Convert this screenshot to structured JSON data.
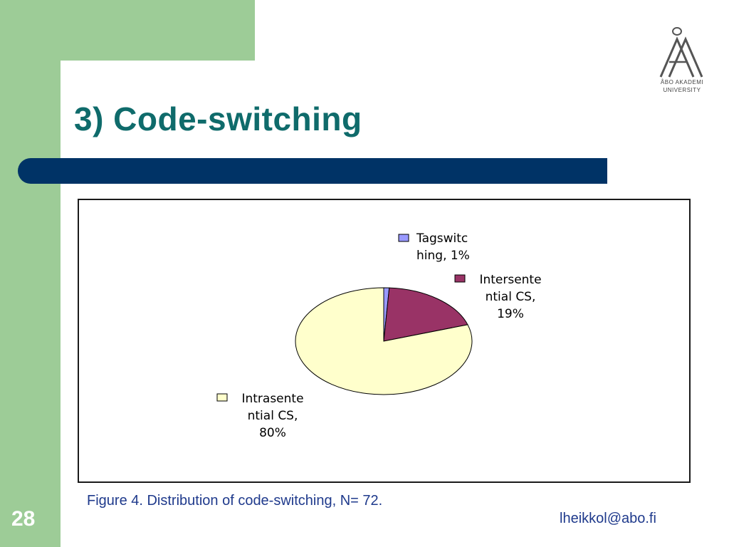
{
  "slide": {
    "title": "3) Code-switching",
    "caption": "Figure 4. Distribution of code-switching, N= 72.",
    "page_number": "28",
    "email": "lheikkol@abo.fi",
    "logo": {
      "icon": "abo-akademi-logo-icon",
      "line1": "ÅBO AKADEMI",
      "line2": "UNIVERSITY"
    }
  },
  "colors": {
    "green": "#9dcc97",
    "title": "#0f6b6b",
    "bar": "#003366",
    "caption": "#1f3a8c"
  },
  "chart_data": {
    "type": "pie",
    "title": "",
    "slices": [
      {
        "label_lines": [
          "Tagswitc",
          "hing, 1%"
        ],
        "name": "Tagswitching",
        "value": 1,
        "color": "#9999ff"
      },
      {
        "label_lines": [
          "Intersente",
          "ntial CS,",
          "19%"
        ],
        "name": "Intersentential CS",
        "value": 19,
        "color": "#993366"
      },
      {
        "label_lines": [
          "Intrasente",
          "ntial CS,",
          "80%"
        ],
        "name": "Intrasentential CS",
        "value": 80,
        "color": "#ffffcc"
      }
    ]
  }
}
